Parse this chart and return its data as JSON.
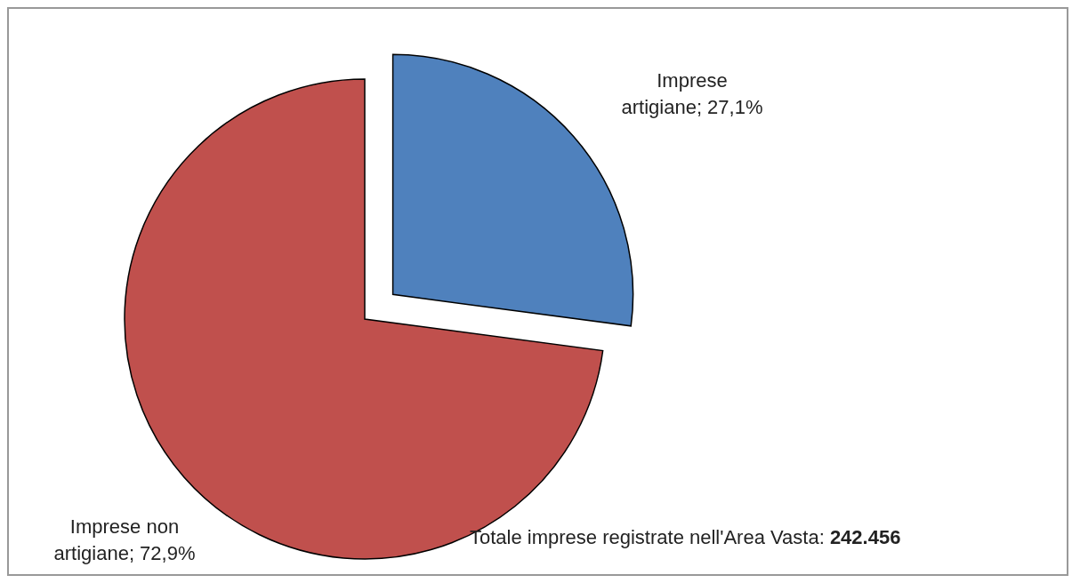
{
  "chart_data": {
    "type": "pie",
    "categories": [
      "Imprese artigiane",
      "Imprese non artigiane"
    ],
    "values": [
      27.1,
      72.9
    ],
    "colors": [
      "#4f81bd",
      "#c0504d"
    ],
    "value_labels": [
      "27,1%",
      "72,9%"
    ],
    "annotations": [
      "Totale imprese registrate nell'Area Vasta: 242.456"
    ]
  }
}
